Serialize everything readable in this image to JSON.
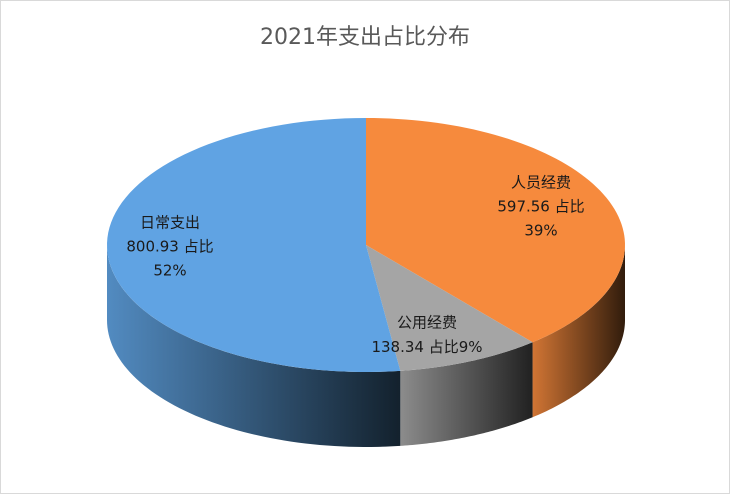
{
  "chart_data": {
    "type": "pie3d",
    "title": "2021年支出占比分布",
    "categories": [
      "人员经费",
      "公用经费",
      "日常支出"
    ],
    "values": [
      597.56,
      138.34,
      800.93
    ],
    "value_labels": [
      "597.56 占比",
      "138.34 占比",
      "800.93 占比"
    ],
    "percents": [
      39,
      9,
      52
    ],
    "percent_labels": [
      "39%",
      "9%",
      "52%"
    ],
    "colors": [
      "#f68a3d",
      "#a5a5a5",
      "#60a3e3"
    ]
  }
}
